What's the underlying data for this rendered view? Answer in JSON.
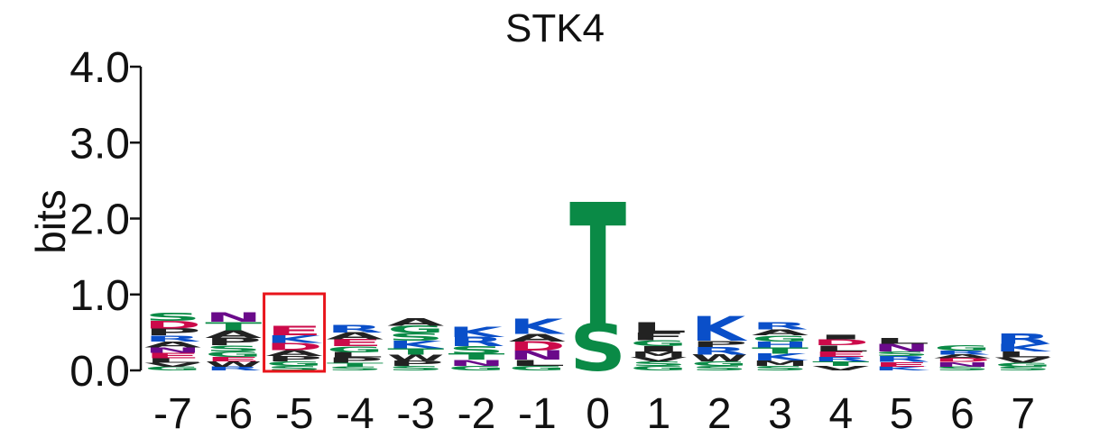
{
  "chart_data": {
    "type": "sequence-logo",
    "title": "STK4",
    "ylabel": "bits",
    "ylim": [
      0,
      4
    ],
    "yticks": [
      {
        "value": 0,
        "label": "0.0"
      },
      {
        "value": 1,
        "label": "1.0"
      },
      {
        "value": 2,
        "label": "2.0"
      },
      {
        "value": 3,
        "label": "3.0"
      },
      {
        "value": 4,
        "label": "4.0"
      }
    ],
    "positions": [
      "-7",
      "-6",
      "-5",
      "-4",
      "-3",
      "-2",
      "-1",
      "0",
      "1",
      "2",
      "3",
      "4",
      "5",
      "6",
      "7"
    ],
    "highlighted_position": "-5",
    "highlight_color": "#e8141b",
    "colors": {
      "S": "#0a8a46",
      "T": "#0a8a46",
      "G": "#0a8a46",
      "C": "#0a8a46",
      "K": "#0a4fc9",
      "R": "#0a4fc9",
      "H": "#0a4fc9",
      "D": "#cc0a4a",
      "E": "#cc0a4a",
      "N": "#6a0a8a",
      "Q": "#6a0a8a",
      "A": "#222222",
      "V": "#222222",
      "L": "#222222",
      "I": "#222222",
      "P": "#222222",
      "W": "#222222",
      "F": "#222222",
      "M": "#222222",
      "Y": "#222222"
    },
    "stacks": [
      {
        "position": "-7",
        "letters": [
          {
            "aa": "G",
            "bits": 0.05
          },
          {
            "aa": "V",
            "bits": 0.05
          },
          {
            "aa": "L",
            "bits": 0.06
          },
          {
            "aa": "E",
            "bits": 0.07
          },
          {
            "aa": "N",
            "bits": 0.07
          },
          {
            "aa": "A",
            "bits": 0.08
          },
          {
            "aa": "R",
            "bits": 0.08
          },
          {
            "aa": "P",
            "bits": 0.09
          },
          {
            "aa": "D",
            "bits": 0.1
          },
          {
            "aa": "S",
            "bits": 0.11
          }
        ]
      },
      {
        "position": "-6",
        "letters": [
          {
            "aa": "R",
            "bits": 0.05
          },
          {
            "aa": "W",
            "bits": 0.07
          },
          {
            "aa": "E",
            "bits": 0.06
          },
          {
            "aa": "G",
            "bits": 0.07
          },
          {
            "aa": "S",
            "bits": 0.08
          },
          {
            "aa": "P",
            "bits": 0.1
          },
          {
            "aa": "A",
            "bits": 0.1
          },
          {
            "aa": "T",
            "bits": 0.11
          },
          {
            "aa": "N",
            "bits": 0.12
          }
        ]
      },
      {
        "position": "-5",
        "letters": [
          {
            "aa": "S",
            "bits": 0.06
          },
          {
            "aa": "G",
            "bits": 0.06
          },
          {
            "aa": "P",
            "bits": 0.07
          },
          {
            "aa": "A",
            "bits": 0.08
          },
          {
            "aa": "D",
            "bits": 0.09
          },
          {
            "aa": "K",
            "bits": 0.1
          },
          {
            "aa": "E",
            "bits": 0.12
          }
        ]
      },
      {
        "position": "-4",
        "letters": [
          {
            "aa": "S",
            "bits": 0.05
          },
          {
            "aa": "T",
            "bits": 0.05
          },
          {
            "aa": "P",
            "bits": 0.07
          },
          {
            "aa": "L",
            "bits": 0.07
          },
          {
            "aa": "G",
            "bits": 0.08
          },
          {
            "aa": "E",
            "bits": 0.09
          },
          {
            "aa": "A",
            "bits": 0.09
          },
          {
            "aa": "R",
            "bits": 0.1
          }
        ]
      },
      {
        "position": "-3",
        "letters": [
          {
            "aa": "S",
            "bits": 0.06
          },
          {
            "aa": "P",
            "bits": 0.07
          },
          {
            "aa": "W",
            "bits": 0.08
          },
          {
            "aa": "T",
            "bits": 0.08
          },
          {
            "aa": "K",
            "bits": 0.1
          },
          {
            "aa": "S",
            "bits": 0.1
          },
          {
            "aa": "G",
            "bits": 0.1
          },
          {
            "aa": "A",
            "bits": 0.1
          }
        ]
      },
      {
        "position": "-2",
        "letters": [
          {
            "aa": "G",
            "bits": 0.06
          },
          {
            "aa": "N",
            "bits": 0.08
          },
          {
            "aa": "T",
            "bits": 0.08
          },
          {
            "aa": "S",
            "bits": 0.1
          },
          {
            "aa": "R",
            "bits": 0.12
          },
          {
            "aa": "K",
            "bits": 0.14
          }
        ]
      },
      {
        "position": "-1",
        "letters": [
          {
            "aa": "G",
            "bits": 0.06
          },
          {
            "aa": "L",
            "bits": 0.08
          },
          {
            "aa": "N",
            "bits": 0.12
          },
          {
            "aa": "D",
            "bits": 0.12
          },
          {
            "aa": "A",
            "bits": 0.1
          },
          {
            "aa": "K",
            "bits": 0.2
          }
        ]
      },
      {
        "position": "0",
        "letters": [
          {
            "aa": "S",
            "bits": 0.62
          },
          {
            "aa": "T",
            "bits": 1.6
          }
        ]
      },
      {
        "position": "1",
        "letters": [
          {
            "aa": "G",
            "bits": 0.06
          },
          {
            "aa": "S",
            "bits": 0.06
          },
          {
            "aa": "V",
            "bits": 0.06
          },
          {
            "aa": "M",
            "bits": 0.07
          },
          {
            "aa": "I",
            "bits": 0.07
          },
          {
            "aa": "G",
            "bits": 0.08
          },
          {
            "aa": "F",
            "bits": 0.1
          },
          {
            "aa": "L",
            "bits": 0.14
          }
        ]
      },
      {
        "position": "2",
        "letters": [
          {
            "aa": "S",
            "bits": 0.06
          },
          {
            "aa": "G",
            "bits": 0.06
          },
          {
            "aa": "W",
            "bits": 0.09
          },
          {
            "aa": "R",
            "bits": 0.1
          },
          {
            "aa": "P",
            "bits": 0.08
          },
          {
            "aa": "K",
            "bits": 0.32
          }
        ]
      },
      {
        "position": "3",
        "letters": [
          {
            "aa": "S",
            "bits": 0.06
          },
          {
            "aa": "M",
            "bits": 0.07
          },
          {
            "aa": "K",
            "bits": 0.09
          },
          {
            "aa": "T",
            "bits": 0.08
          },
          {
            "aa": "H",
            "bits": 0.08
          },
          {
            "aa": "G",
            "bits": 0.08
          },
          {
            "aa": "A",
            "bits": 0.08
          },
          {
            "aa": "R",
            "bits": 0.09
          }
        ]
      },
      {
        "position": "4",
        "letters": [
          {
            "aa": "V",
            "bits": 0.06
          },
          {
            "aa": "T",
            "bits": 0.06
          },
          {
            "aa": "R",
            "bits": 0.06
          },
          {
            "aa": "E",
            "bits": 0.07
          },
          {
            "aa": "L",
            "bits": 0.08
          },
          {
            "aa": "D",
            "bits": 0.08
          },
          {
            "aa": "I",
            "bits": 0.06
          }
        ]
      },
      {
        "position": "5",
        "letters": [
          {
            "aa": "K",
            "bits": 0.05
          },
          {
            "aa": "E",
            "bits": 0.06
          },
          {
            "aa": "R",
            "bits": 0.08
          },
          {
            "aa": "S",
            "bits": 0.06
          },
          {
            "aa": "N",
            "bits": 0.1
          },
          {
            "aa": "L",
            "bits": 0.08
          }
        ]
      },
      {
        "position": "6",
        "letters": [
          {
            "aa": "S",
            "bits": 0.05
          },
          {
            "aa": "N",
            "bits": 0.06
          },
          {
            "aa": "D",
            "bits": 0.05
          },
          {
            "aa": "A",
            "bits": 0.05
          },
          {
            "aa": "R",
            "bits": 0.05
          },
          {
            "aa": "G",
            "bits": 0.07
          }
        ]
      },
      {
        "position": "7",
        "letters": [
          {
            "aa": "S",
            "bits": 0.05
          },
          {
            "aa": "G",
            "bits": 0.05
          },
          {
            "aa": "V",
            "bits": 0.07
          },
          {
            "aa": "L",
            "bits": 0.08
          },
          {
            "aa": "K",
            "bits": 0.1
          },
          {
            "aa": "R",
            "bits": 0.14
          }
        ]
      }
    ]
  }
}
